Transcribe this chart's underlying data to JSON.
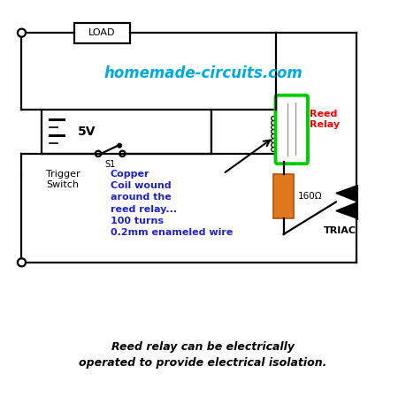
{
  "title": "homemade-circuits.com",
  "title_color": "#00AADD",
  "bg_color": "#FFFFFF",
  "outer_bg": "#FFFFFF",
  "caption": "Reed relay can be electrically\noperated to provide electrical isolation.",
  "voltage_label": "5V",
  "switch_label": "S1",
  "trigger_label": "Trigger\nSwitch",
  "reed_label": "Reed\nRelay",
  "triac_label": "TRIAC",
  "resistor_label": "160Ω",
  "coil_annotation": "Copper\nCoil wound\naround the\nreed relay...\n100 turns\n0.2mm enameled wire",
  "load_label": "LOAD",
  "lw": 1.6
}
